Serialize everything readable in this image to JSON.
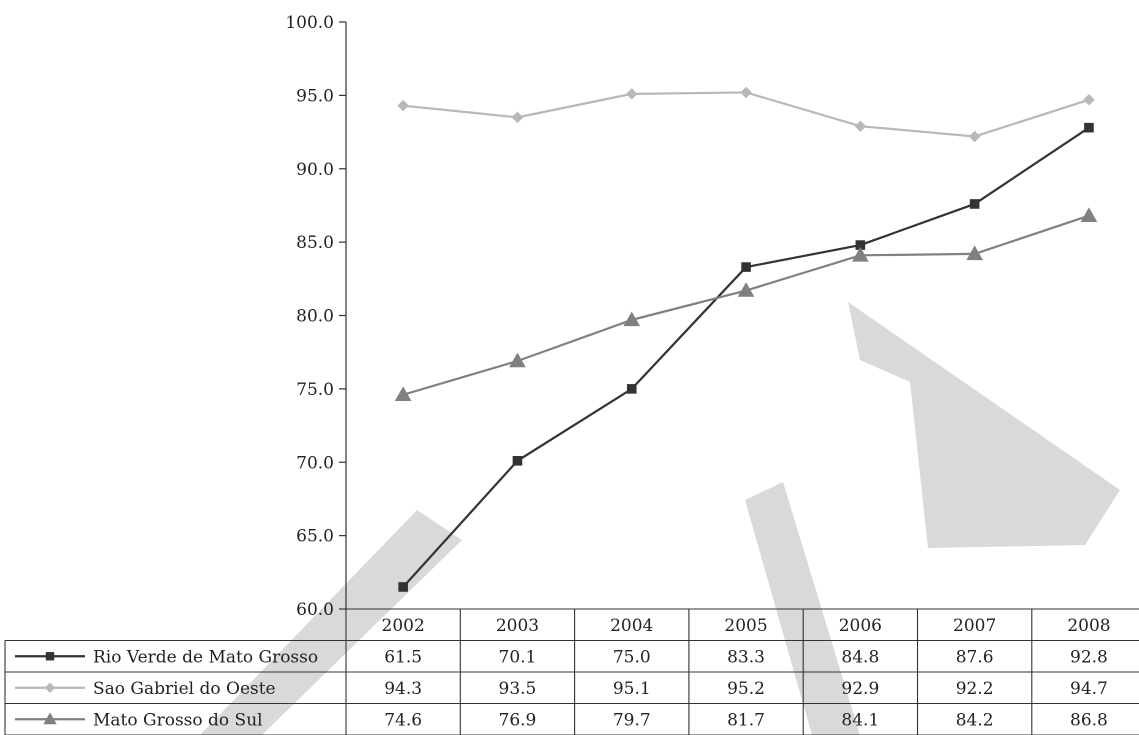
{
  "chart_data": {
    "type": "line",
    "title": "",
    "xlabel": "",
    "ylabel": "",
    "ylim": [
      60.0,
      100.0
    ],
    "yticks": [
      "60.0",
      "65.0",
      "70.0",
      "75.0",
      "80.0",
      "85.0",
      "90.0",
      "95.0",
      "100.0"
    ],
    "categories": [
      "2002",
      "2003",
      "2004",
      "2005",
      "2006",
      "2007",
      "2008"
    ],
    "series": [
      {
        "name": "Rio Verde de Mato Grosso",
        "marker": "square",
        "color": "#333333",
        "values": [
          61.5,
          70.1,
          75.0,
          83.3,
          84.8,
          87.6,
          92.8
        ],
        "labels": [
          "61.5",
          "70.1",
          "75.0",
          "83.3",
          "84.8",
          "87.6",
          "92.8"
        ]
      },
      {
        "name": "Sao Gabriel do Oeste",
        "marker": "diamond",
        "color": "#b8b8b8",
        "values": [
          94.3,
          93.5,
          95.1,
          95.2,
          92.9,
          92.2,
          94.7
        ],
        "labels": [
          "94.3",
          "93.5",
          "95.1",
          "95.2",
          "92.9",
          "92.2",
          "94.7"
        ]
      },
      {
        "name": "Mato Grosso do Sul",
        "marker": "triangle",
        "color": "#808080",
        "values": [
          74.6,
          76.9,
          79.7,
          81.7,
          84.1,
          84.2,
          86.8
        ],
        "labels": [
          "74.6",
          "76.9",
          "79.7",
          "81.7",
          "84.1",
          "84.2",
          "86.8"
        ]
      }
    ],
    "legend": "data-table-below",
    "grid": false
  }
}
